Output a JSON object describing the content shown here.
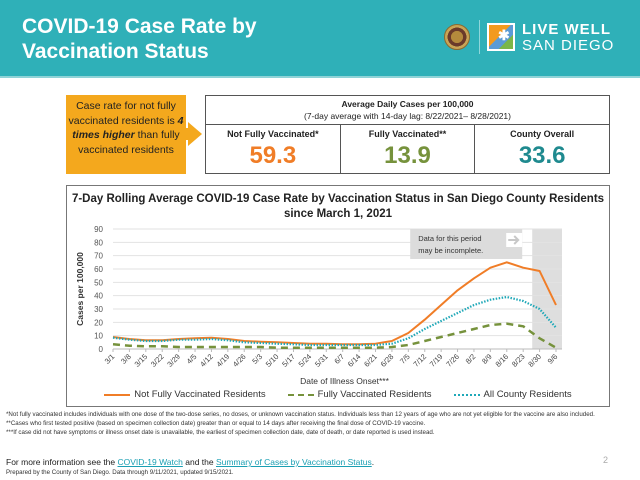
{
  "header": {
    "title_line1": "COVID-19 Case Rate by",
    "title_line2": "Vaccination Status",
    "logo_text_line1": "LIVE WELL",
    "logo_text_line2": "SAN DIEGO",
    "logo_figure": "✱"
  },
  "callout": {
    "line1": "Case rate for not fully vaccinated residents is",
    "emphasis": "4 times higher",
    "line2": "than fully vaccinated residents"
  },
  "stats": {
    "heading": "Average Daily Cases per 100,000",
    "subheading": "(7-day average with 14-day lag: 8/22/2021– 8/28/2021)",
    "columns": [
      {
        "label": "Not Fully Vaccinated*",
        "value": "59.3",
        "color": "#f07d27"
      },
      {
        "label": "Fully Vaccinated**",
        "value": "13.9",
        "color": "#76923c"
      },
      {
        "label": "County Overall",
        "value": "33.6",
        "color": "#1f8a8f"
      }
    ]
  },
  "chart_data": {
    "type": "line",
    "title": "7-Day Rolling Average COVID-19 Case Rate by Vaccination Status in San Diego County Residents since March 1, 2021",
    "xlabel": "Date of Illness Onset***",
    "ylabel": "Cases per 100,000",
    "ylim": [
      0,
      90
    ],
    "yticks": [
      0,
      10,
      20,
      30,
      40,
      50,
      60,
      70,
      80,
      90
    ],
    "grid": true,
    "legend_position": "bottom",
    "categories": [
      "3/1",
      "3/8",
      "3/15",
      "3/22",
      "3/29",
      "4/5",
      "4/12",
      "4/19",
      "4/26",
      "5/3",
      "5/10",
      "5/17",
      "5/24",
      "5/31",
      "6/7",
      "6/14",
      "6/21",
      "6/28",
      "7/5",
      "7/12",
      "7/19",
      "7/26",
      "8/2",
      "8/9",
      "8/16",
      "8/23",
      "8/30",
      "9/6"
    ],
    "series": [
      {
        "name": "Not Fully Vaccinated Residents",
        "color": "#f07d27",
        "style": "solid",
        "values": [
          9,
          7.5,
          6.5,
          6.5,
          7.5,
          8,
          8.5,
          7.5,
          6,
          5.5,
          5,
          4.5,
          4,
          4,
          3.5,
          3.5,
          4,
          6,
          12,
          22,
          33,
          44,
          53,
          61,
          65,
          61,
          58.5,
          33
        ]
      },
      {
        "name": "Fully Vaccinated Residents",
        "color": "#76923c",
        "style": "dashed",
        "values": [
          3.5,
          2.5,
          2,
          2,
          1.5,
          1.5,
          1.5,
          1.5,
          1.5,
          1.5,
          1,
          1,
          1,
          1,
          1,
          1,
          1,
          1.5,
          3,
          6,
          9,
          12,
          15,
          18,
          19,
          17,
          8,
          1
        ]
      },
      {
        "name": "All County Residents",
        "color": "#1fa8b8",
        "style": "dotted",
        "values": [
          8.5,
          7,
          6,
          6,
          7,
          7,
          7.5,
          6.5,
          5,
          4.5,
          4,
          3.5,
          3,
          3,
          3,
          3,
          3,
          4,
          8,
          15,
          21,
          27,
          33,
          37,
          39,
          36,
          30,
          16
        ]
      }
    ],
    "annotation": "Data for this period may be incomplete.",
    "shaded_from": "8/30"
  },
  "footnotes": [
    "*Not fully vaccinated includes individuals with one dose of the two-dose series, no doses, or unknown vaccination status. Individuals less than 12 years of age who are not yet eligible for the vaccine are also included.",
    "**Cases who first tested positive (based on specimen collection date) greater than or equal to 14 days after receiving the final dose of COVID-19 vaccine.",
    "***If case did not have symptoms or illness onset date is unavailable, the earliest of specimen collection date, date of death, or date reported is used instead."
  ],
  "more_info": {
    "prefix": "For more information see the",
    "link1": "COVID-19 Watch",
    "middle": "and the",
    "link2": "Summary of Cases by Vaccination Status",
    "suffix": "."
  },
  "prepared": "Prepared by the County of San Diego. Data through 9/11/2021, updated 9/15/2021.",
  "page_number": "2"
}
